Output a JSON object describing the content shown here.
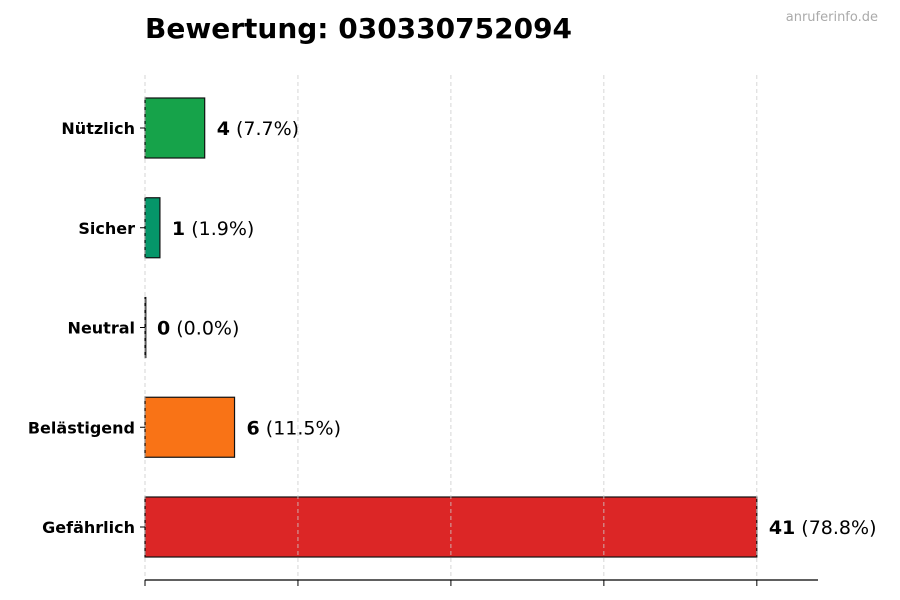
{
  "title": "Bewertung: 030330752094",
  "watermark": "anruferinfo.de",
  "chart_data": {
    "type": "bar",
    "orientation": "horizontal",
    "title": "Bewertung: 030330752094",
    "categories": [
      "Nützlich",
      "Sicher",
      "Neutral",
      "Belästigend",
      "Gefährlich"
    ],
    "values": [
      4,
      1,
      0,
      6,
      41
    ],
    "percent_labels": [
      "(7.7%)",
      "(1.9%)",
      "(0.0%)",
      "(11.5%)",
      "(78.8%)"
    ],
    "colors": [
      "#16a34a",
      "#059669",
      "#6b7280",
      "#f97316",
      "#dc2626"
    ],
    "xlim": [
      0,
      45.1
    ],
    "grid": "x-dashed",
    "xlabel": "",
    "ylabel": ""
  }
}
